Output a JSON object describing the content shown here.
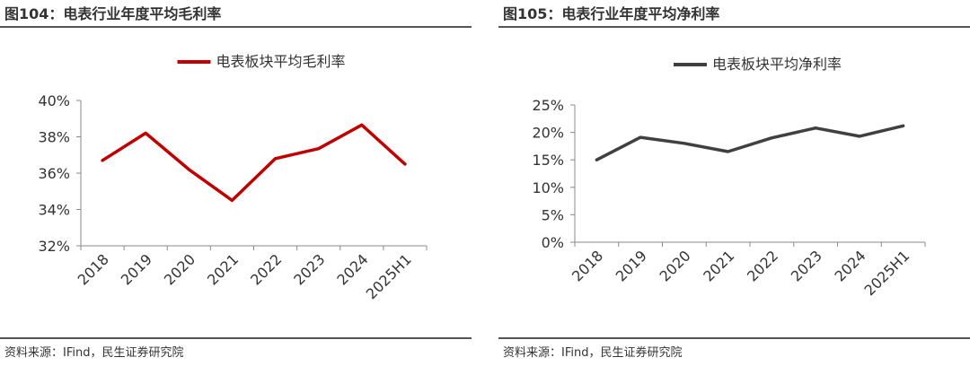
{
  "panels": [
    {
      "figure_title": "图104：电表行业年度平均毛利率",
      "source": "资料来源：IFind，民生证券研究院"
    },
    {
      "figure_title": "图105：电表行业年度平均净利率",
      "source": "资料来源：IFind，民生证券研究院"
    }
  ],
  "chart_data": [
    {
      "type": "line",
      "title": "电表行业年度平均毛利率",
      "categories": [
        "2018",
        "2019",
        "2020",
        "2021",
        "2022",
        "2023",
        "2024",
        "2025H1"
      ],
      "series": [
        {
          "name": "电表板块平均毛利率",
          "color": "#C00000",
          "values": [
            36.7,
            38.2,
            36.2,
            34.5,
            36.8,
            37.35,
            38.65,
            36.5
          ]
        }
      ],
      "ylim": [
        32,
        40
      ],
      "yticks": [
        32,
        34,
        36,
        38,
        40
      ],
      "ytick_labels": [
        "32%",
        "34%",
        "36%",
        "38%",
        "40%"
      ],
      "legend_position": "top-center",
      "grid": false
    },
    {
      "type": "line",
      "title": "电表行业年度平均净利率",
      "categories": [
        "2018",
        "2019",
        "2020",
        "2021",
        "2022",
        "2023",
        "2024",
        "2025H1"
      ],
      "series": [
        {
          "name": "电表板块平均净利率",
          "color": "#404040",
          "values": [
            15.0,
            19.1,
            18.0,
            16.5,
            19.0,
            20.8,
            19.3,
            21.2
          ]
        }
      ],
      "ylim": [
        0,
        25
      ],
      "yticks": [
        0,
        5,
        10,
        15,
        20,
        25
      ],
      "ytick_labels": [
        "0%",
        "5%",
        "10%",
        "15%",
        "20%",
        "25%"
      ],
      "legend_position": "top-center",
      "grid": false
    }
  ]
}
